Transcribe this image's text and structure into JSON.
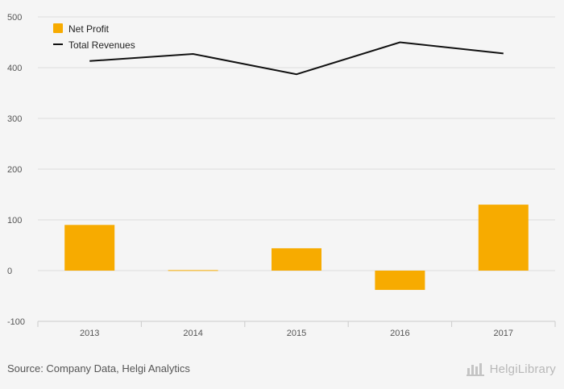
{
  "source_text": "Source: Company Data, Helgi Analytics",
  "logo_text": "HelgiLibrary",
  "colors": {
    "bar": "#f7ab00",
    "line": "#111111",
    "grid": "#dddddd",
    "background": "#f5f5f5"
  },
  "chart_data": {
    "type": "bar",
    "categories": [
      "2013",
      "2014",
      "2015",
      "2016",
      "2017"
    ],
    "ylim": [
      -100,
      500
    ],
    "yticks": [
      500,
      400,
      300,
      200,
      100,
      0,
      -100
    ],
    "grid": true,
    "legend_position": "top-left",
    "series": [
      {
        "name": "Net Profit",
        "type": "bar",
        "values": [
          90,
          1,
          44,
          -38,
          130
        ]
      },
      {
        "name": "Total Revenues",
        "type": "line",
        "values": [
          413,
          427,
          387,
          450,
          428
        ]
      }
    ],
    "title": "",
    "xlabel": "",
    "ylabel": ""
  }
}
